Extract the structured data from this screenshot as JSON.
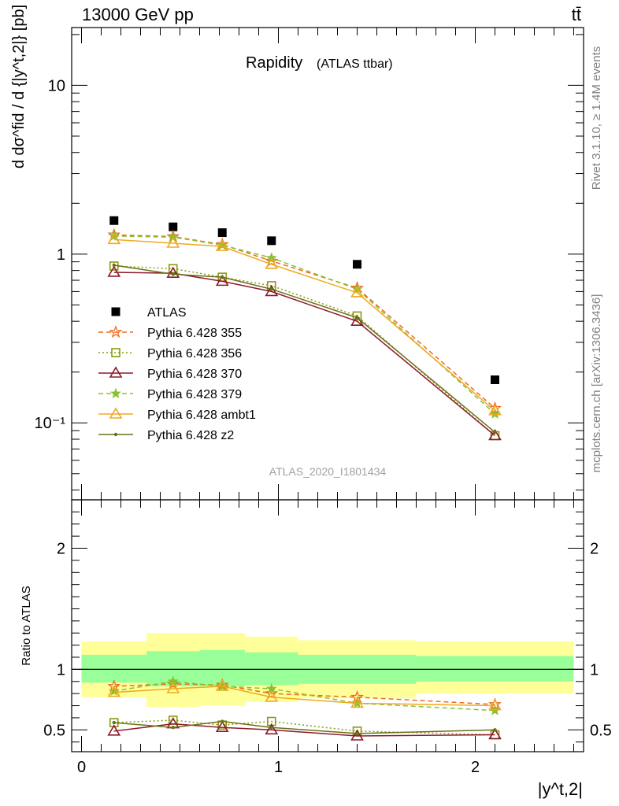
{
  "header": {
    "left": "13000 GeV pp",
    "right": "tt̄"
  },
  "side_labels": {
    "rivet": "Rivet 3.1.10, ≥ 1.4M events",
    "mcplots": "mcplots.cern.ch [arXiv:1306.3436]"
  },
  "chart_data": [
    {
      "type": "line",
      "panel": "main",
      "title": "Rapidity",
      "subtitle": "(ATLAS ttbar)",
      "watermark": "ATLAS_2020_I1801434",
      "ylabel": "d dσ^fid / d {|y^t,2|} [pb]",
      "yscale": "log",
      "ylim": [
        0.035,
        22
      ],
      "xlim": [
        -0.05,
        2.55
      ],
      "yticks": [
        {
          "value": 0.1,
          "label": "10⁻¹"
        },
        {
          "value": 1,
          "label": "1"
        },
        {
          "value": 10,
          "label": "10"
        }
      ],
      "legend_position": "center-left",
      "bins": [
        [
          0.0,
          0.33
        ],
        [
          0.33,
          0.6
        ],
        [
          0.6,
          0.83
        ],
        [
          0.83,
          1.1
        ],
        [
          1.1,
          1.7
        ],
        [
          1.7,
          2.5
        ]
      ],
      "x": [
        0.165,
        0.465,
        0.715,
        0.965,
        1.4,
        2.1
      ],
      "series": [
        {
          "name": "ATLAS",
          "color": "#000000",
          "marker": "square-filled",
          "dash": "none",
          "values": [
            1.58,
            1.45,
            1.34,
            1.2,
            0.87,
            0.18
          ]
        },
        {
          "name": "Pythia 6.428 355",
          "color": "#ee6a22",
          "marker": "star-open",
          "dash": "6,4",
          "values": [
            1.3,
            1.27,
            1.14,
            0.91,
            0.63,
            0.122
          ]
        },
        {
          "name": "Pythia 6.428 356",
          "color": "#8a9a10",
          "marker": "square-open",
          "dash": "2,3",
          "values": [
            0.85,
            0.82,
            0.73,
            0.65,
            0.43,
            0.084
          ]
        },
        {
          "name": "Pythia 6.428 370",
          "color": "#8b1a2a",
          "marker": "triangle-open",
          "dash": "none",
          "values": [
            0.78,
            0.77,
            0.69,
            0.6,
            0.4,
            0.084
          ]
        },
        {
          "name": "Pythia 6.428 379",
          "color": "#88c230",
          "marker": "star-filled",
          "dash": "6,4",
          "values": [
            1.28,
            1.26,
            1.13,
            0.95,
            0.62,
            0.113
          ]
        },
        {
          "name": "Pythia 6.428 ambt1",
          "color": "#f0a820",
          "marker": "triangle-open",
          "dash": "none",
          "values": [
            1.22,
            1.16,
            1.11,
            0.87,
            0.59,
            0.118
          ]
        },
        {
          "name": "Pythia 6.428 z2",
          "color": "#6b7018",
          "marker": "dot",
          "dash": "none",
          "values": [
            0.86,
            0.76,
            0.73,
            0.62,
            0.42,
            0.088
          ]
        }
      ]
    },
    {
      "type": "line",
      "panel": "ratio",
      "ylabel": "Ratio to ATLAS",
      "xlabel": "|y^t,2|",
      "ylim": [
        0.32,
        2.4
      ],
      "xlim": [
        -0.05,
        2.55
      ],
      "yticks": [
        {
          "value": 0.5,
          "label": "0.5"
        },
        {
          "value": 1,
          "label": "1"
        },
        {
          "value": 2,
          "label": "2"
        }
      ],
      "xticks": [
        {
          "value": 0,
          "label": "0"
        },
        {
          "value": 1,
          "label": "1"
        },
        {
          "value": 2,
          "label": "2"
        }
      ],
      "bins": [
        [
          0.0,
          0.33
        ],
        [
          0.33,
          0.6
        ],
        [
          0.6,
          0.83
        ],
        [
          0.83,
          1.1
        ],
        [
          1.1,
          1.7
        ],
        [
          1.7,
          2.5
        ]
      ],
      "band_yellow": [
        [
          0.77,
          1.23
        ],
        [
          0.69,
          1.3
        ],
        [
          0.7,
          1.3
        ],
        [
          0.73,
          1.27
        ],
        [
          0.76,
          1.24
        ],
        [
          0.8,
          1.23
        ]
      ],
      "band_green": [
        [
          0.89,
          1.12
        ],
        [
          0.86,
          1.15
        ],
        [
          0.86,
          1.16
        ],
        [
          0.87,
          1.14
        ],
        [
          0.88,
          1.12
        ],
        [
          0.9,
          1.11
        ]
      ],
      "x": [
        0.165,
        0.465,
        0.715,
        0.965,
        1.4,
        2.1
      ],
      "series": [
        {
          "name": "Pythia 6.428 355",
          "color": "#ee6a22",
          "marker": "star-open",
          "dash": "6,4",
          "values": [
            0.86,
            0.88,
            0.87,
            0.8,
            0.77,
            0.71
          ]
        },
        {
          "name": "Pythia 6.428 356",
          "color": "#8a9a10",
          "marker": "square-open",
          "dash": "2,3",
          "values": [
            0.56,
            0.58,
            0.54,
            0.57,
            0.49,
            0.46
          ]
        },
        {
          "name": "Pythia 6.428 370",
          "color": "#8b1a2a",
          "marker": "triangle-open",
          "dash": "none",
          "values": [
            0.49,
            0.55,
            0.52,
            0.5,
            0.45,
            0.46
          ]
        },
        {
          "name": "Pythia 6.428 379",
          "color": "#88c230",
          "marker": "star-filled",
          "dash": "6,4",
          "values": [
            0.82,
            0.9,
            0.86,
            0.84,
            0.72,
            0.66
          ]
        },
        {
          "name": "Pythia 6.428 ambt1",
          "color": "#f0a820",
          "marker": "triangle-open",
          "dash": "none",
          "values": [
            0.81,
            0.84,
            0.86,
            0.77,
            0.72,
            0.7
          ]
        },
        {
          "name": "Pythia 6.428 z2",
          "color": "#6b7018",
          "marker": "dot",
          "dash": "none",
          "values": [
            0.56,
            0.52,
            0.57,
            0.52,
            0.47,
            0.5
          ]
        }
      ]
    }
  ]
}
